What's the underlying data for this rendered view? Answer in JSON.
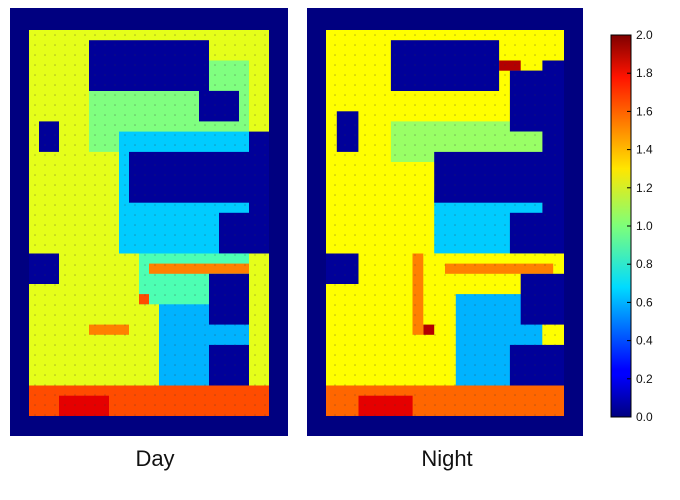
{
  "chart_data": {
    "type": "heatmap",
    "colormap": "jet",
    "panels": [
      {
        "title": "Day",
        "grid": {
          "cols": 24,
          "rows": 38,
          "background_value": 0.0,
          "fill_value": 1.2,
          "regions": [
            {
              "name": "lower-fan-cyan",
              "cells": [
                13,
                26,
                22,
                37
              ],
              "value": 0.6
            },
            {
              "name": "upper-fan-green",
              "cells": [
                6,
                3,
                22,
                12
              ],
              "value": 1.0
            },
            {
              "name": "mid-cyan",
              "cells": [
                9,
                10,
                22,
                22
              ],
              "value": 0.65
            },
            {
              "name": "low-mid-green",
              "cells": [
                11,
                22,
                22,
                27
              ],
              "value": 0.9
            },
            {
              "name": "bottom-orange",
              "cells": [
                0,
                35,
                24,
                38
              ],
              "value": 1.6
            },
            {
              "name": "bottom-red",
              "cells": [
                3,
                36,
                8,
                38
              ],
              "value": 1.8
            },
            {
              "name": "orange-strip",
              "cells": [
                12,
                23,
                22,
                24
              ],
              "value": 1.5
            },
            {
              "name": "orange-spot",
              "cells": [
                11,
                26,
                12,
                27
              ],
              "value": 1.6
            },
            {
              "name": "orange-dash",
              "cells": [
                6,
                29,
                10,
                30
              ],
              "value": 1.5
            },
            {
              "name": "block-top",
              "cells": [
                6,
                1,
                18,
                6
              ],
              "value": 0.05
            },
            {
              "name": "block-top-right",
              "cells": [
                17,
                6,
                21,
                9
              ],
              "value": 0.05
            },
            {
              "name": "block-left-upper",
              "cells": [
                1,
                9,
                3,
                12
              ],
              "value": 0.05
            },
            {
              "name": "block-middle",
              "cells": [
                10,
                12,
                22,
                17
              ],
              "value": 0.05
            },
            {
              "name": "block-left-lower",
              "cells": [
                0,
                22,
                3,
                25
              ],
              "value": 0.05
            },
            {
              "name": "block-right-1",
              "cells": [
                19,
                18,
                22,
                22
              ],
              "value": 0.05
            },
            {
              "name": "block-right-2",
              "cells": [
                18,
                24,
                22,
                29
              ],
              "value": 0.05
            },
            {
              "name": "block-right-3",
              "cells": [
                18,
                31,
                22,
                35
              ],
              "value": 0.05
            },
            {
              "name": "right-edge",
              "cells": [
                22,
                10,
                24,
                22
              ],
              "value": 0.05
            }
          ]
        }
      },
      {
        "title": "Night",
        "grid": {
          "cols": 22,
          "rows": 38,
          "background_value": 0.0,
          "fill_value": 1.25,
          "regions": [
            {
              "name": "lower-fan-cyan",
              "cells": [
                12,
                26,
                20,
                37
              ],
              "value": 0.6
            },
            {
              "name": "upper-fan-green",
              "cells": [
                6,
                9,
                20,
                13
              ],
              "value": 1.05
            },
            {
              "name": "mid-cyan",
              "cells": [
                10,
                16,
                20,
                22
              ],
              "value": 0.65
            },
            {
              "name": "bottom-orange",
              "cells": [
                0,
                35,
                22,
                38
              ],
              "value": 1.55
            },
            {
              "name": "bottom-red",
              "cells": [
                3,
                36,
                8,
                38
              ],
              "value": 1.8
            },
            {
              "name": "orange-column",
              "cells": [
                8,
                22,
                9,
                30
              ],
              "value": 1.5
            },
            {
              "name": "orange-strip",
              "cells": [
                11,
                23,
                21,
                24
              ],
              "value": 1.5
            },
            {
              "name": "red-spot",
              "cells": [
                9,
                29,
                10,
                30
              ],
              "value": 1.9
            },
            {
              "name": "red-bar-top",
              "cells": [
                16,
                3,
                18,
                4
              ],
              "value": 1.9
            },
            {
              "name": "block-top",
              "cells": [
                6,
                1,
                16,
                6
              ],
              "value": 0.05
            },
            {
              "name": "block-top-right",
              "cells": [
                17,
                4,
                21,
                10
              ],
              "value": 0.05
            },
            {
              "name": "block-left-upper",
              "cells": [
                1,
                8,
                3,
                12
              ],
              "value": 0.05
            },
            {
              "name": "block-middle",
              "cells": [
                10,
                12,
                22,
                17
              ],
              "value": 0.05
            },
            {
              "name": "block-left-lower",
              "cells": [
                0,
                22,
                3,
                25
              ],
              "value": 0.05
            },
            {
              "name": "block-right-1",
              "cells": [
                17,
                18,
                22,
                22
              ],
              "value": 0.05
            },
            {
              "name": "block-right-2",
              "cells": [
                18,
                24,
                22,
                29
              ],
              "value": 0.05
            },
            {
              "name": "block-right-3",
              "cells": [
                17,
                31,
                22,
                35
              ],
              "value": 0.05
            },
            {
              "name": "right-edge",
              "cells": [
                20,
                3,
                22,
                22
              ],
              "value": 0.05
            }
          ]
        }
      }
    ],
    "colorbar": {
      "vmin": 0.0,
      "vmax": 2.0,
      "ticks": [
        "0.0",
        "0.2",
        "0.4",
        "0.6",
        "0.8",
        "1.0",
        "1.2",
        "1.4",
        "1.6",
        "1.8",
        "2.0"
      ]
    }
  }
}
